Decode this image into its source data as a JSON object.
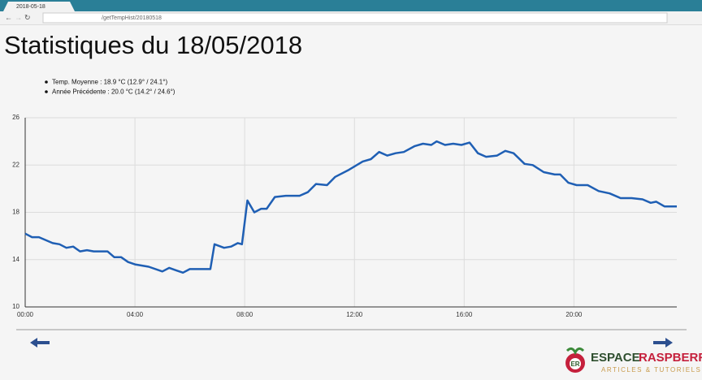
{
  "browser": {
    "tab_title": "2018-05-18",
    "url": "/getTempHist/20180518"
  },
  "page": {
    "title": "Statistiques du 18/05/2018",
    "stats": [
      "Temp. Moyenne : 18.9 °C (12.9° / 24.1°)",
      "Année Précédente : 20.0 °C (14.2° / 24.6°)"
    ],
    "logo": {
      "word1": "ESPACE",
      "word2": "RASPBERRY",
      "tagline": "ARTICLES & TUTORIELS"
    }
  },
  "chart_data": {
    "type": "line",
    "grid": true,
    "x": [
      0,
      0.25,
      0.5,
      1,
      1.25,
      1.5,
      1.75,
      2,
      2.25,
      2.5,
      3,
      3.25,
      3.5,
      3.75,
      4,
      4.5,
      5,
      5.25,
      5.5,
      5.75,
      6,
      6.5,
      6.75,
      6.9,
      7.25,
      7.5,
      7.75,
      7.9,
      8.1,
      8.35,
      8.6,
      8.8,
      9.1,
      9.5,
      10,
      10.3,
      10.6,
      11,
      11.3,
      11.8,
      12.3,
      12.6,
      12.9,
      13.2,
      13.5,
      13.8,
      14.2,
      14.5,
      14.8,
      15,
      15.3,
      15.6,
      15.9,
      16.2,
      16.5,
      16.8,
      17.2,
      17.5,
      17.8,
      18.2,
      18.5,
      18.9,
      19.3,
      19.5,
      19.8,
      20.1,
      20.5,
      20.9,
      21.3,
      21.7,
      22.1,
      22.5,
      22.8,
      23,
      23.3,
      23.75
    ],
    "series": [
      {
        "color": "#1f5fb4",
        "values": [
          16.2,
          15.9,
          15.9,
          15.4,
          15.3,
          15.0,
          15.1,
          14.7,
          14.8,
          14.7,
          14.7,
          14.2,
          14.2,
          13.8,
          13.6,
          13.4,
          13.0,
          13.3,
          13.1,
          12.9,
          13.2,
          13.2,
          13.2,
          15.3,
          15.0,
          15.1,
          15.4,
          15.3,
          19.0,
          18.0,
          18.3,
          18.3,
          19.3,
          19.4,
          19.4,
          19.7,
          20.4,
          20.3,
          21.0,
          21.6,
          22.3,
          22.5,
          23.1,
          22.8,
          23.0,
          23.1,
          23.6,
          23.8,
          23.7,
          24.0,
          23.7,
          23.8,
          23.7,
          23.9,
          23.0,
          22.7,
          22.8,
          23.2,
          23.0,
          22.1,
          22.0,
          21.4,
          21.2,
          21.2,
          20.5,
          20.3,
          20.3,
          19.8,
          19.6,
          19.2,
          19.2,
          19.1,
          18.8,
          18.9,
          18.5,
          18.5
        ]
      }
    ],
    "xlim": [
      0,
      23.75
    ],
    "xticks": [
      {
        "value": 0,
        "label": "00:00"
      },
      {
        "value": 4,
        "label": "04:00"
      },
      {
        "value": 8,
        "label": "08:00"
      },
      {
        "value": 12,
        "label": "12:00"
      },
      {
        "value": 16,
        "label": "16:00"
      },
      {
        "value": 20,
        "label": "20:00"
      }
    ],
    "ylim": [
      10,
      26
    ],
    "yticks": [
      10,
      14,
      18,
      22,
      26
    ]
  }
}
